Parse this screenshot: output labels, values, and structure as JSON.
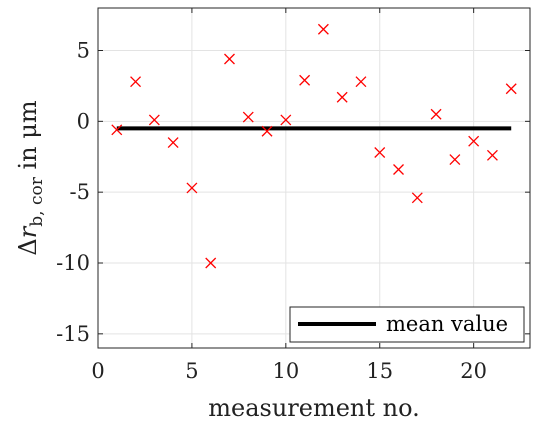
{
  "chart_data": {
    "type": "scatter",
    "title": "",
    "xlabel": "measurement no.",
    "ylabel": {
      "prefix": "Δ",
      "symbol": "r",
      "subscript": "b, cor",
      "suffix": " in μm"
    },
    "xlim": [
      0,
      23
    ],
    "ylim": [
      -16,
      8
    ],
    "xticks": [
      0,
      5,
      10,
      15,
      20
    ],
    "yticks": [
      5,
      0,
      -5,
      -10,
      -15
    ],
    "xtick_labels": [
      "0",
      "5",
      "10",
      "15",
      "20"
    ],
    "ytick_labels": [
      "5",
      "0",
      "-5",
      "-10",
      "-15"
    ],
    "grid": true,
    "legend_position": "bottom-right",
    "series": [
      {
        "kind": "scatter",
        "marker": "x",
        "color": "#ff0000",
        "x": [
          1,
          2,
          3,
          4,
          5,
          6,
          7,
          8,
          9,
          10,
          11,
          12,
          13,
          14,
          15,
          16,
          17,
          18,
          19,
          20,
          21,
          22
        ],
        "y": [
          -0.6,
          2.8,
          0.1,
          -1.5,
          -4.7,
          -10.0,
          4.4,
          0.3,
          -0.7,
          0.1,
          2.9,
          6.5,
          1.7,
          2.8,
          -2.2,
          -3.4,
          -5.4,
          0.5,
          -2.7,
          -1.4,
          -2.4,
          2.3
        ]
      },
      {
        "kind": "line",
        "name": "mean value",
        "color": "#000000",
        "x": [
          1,
          22
        ],
        "y": [
          -0.5,
          -0.5
        ]
      }
    ]
  }
}
